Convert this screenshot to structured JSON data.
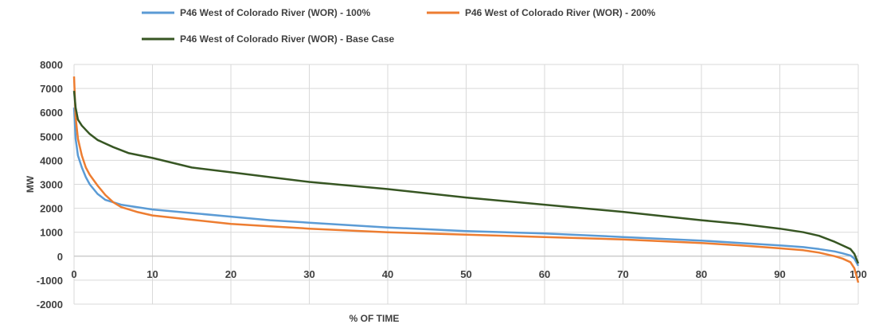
{
  "chart_data": {
    "type": "line",
    "title": "",
    "xlabel": "% OF TIME",
    "ylabel": "MW",
    "xlim": [
      0,
      100
    ],
    "ylim": [
      -2000,
      8000
    ],
    "xticks": [
      "0",
      "10",
      "20",
      "30",
      "40",
      "50",
      "60",
      "70",
      "80",
      "90",
      "100"
    ],
    "yticks": [
      "8000",
      "7000",
      "6000",
      "5000",
      "4000",
      "3000",
      "2000",
      "1000",
      "0",
      "-1000",
      "-2000"
    ],
    "grid": "vertical and horizontal",
    "legend_position": "top",
    "series": [
      {
        "name": "P46 West of Colorado River (WOR) - 100%",
        "color": "#5B9BD5",
        "x": [
          0,
          0.2,
          0.5,
          1,
          1.5,
          2,
          3,
          4,
          5,
          6,
          8,
          10,
          15,
          20,
          25,
          30,
          40,
          50,
          60,
          70,
          80,
          85,
          90,
          93,
          95,
          97,
          98,
          99,
          99.5,
          100
        ],
        "y": [
          6200,
          4900,
          4200,
          3700,
          3300,
          3000,
          2600,
          2350,
          2250,
          2150,
          2050,
          1950,
          1800,
          1650,
          1500,
          1400,
          1200,
          1050,
          950,
          800,
          650,
          550,
          450,
          380,
          300,
          200,
          120,
          30,
          -100,
          -400
        ]
      },
      {
        "name": "P46 West of Colorado River (WOR) - 200%",
        "color": "#ED7D31",
        "x": [
          0,
          0.2,
          0.5,
          1,
          1.5,
          2,
          3,
          4,
          5,
          6,
          8,
          10,
          15,
          20,
          25,
          30,
          40,
          50,
          60,
          70,
          80,
          85,
          90,
          93,
          95,
          97,
          98,
          99,
          99.5,
          100
        ],
        "y": [
          7500,
          5800,
          4900,
          4200,
          3700,
          3400,
          2950,
          2550,
          2250,
          2050,
          1850,
          1700,
          1520,
          1350,
          1250,
          1150,
          1000,
          900,
          800,
          700,
          550,
          450,
          330,
          250,
          150,
          0,
          -100,
          -250,
          -500,
          -1100
        ]
      },
      {
        "name": "P46 West of Colorado River (WOR) - Base Case",
        "color": "#375623",
        "x": [
          0,
          0.2,
          0.5,
          1,
          2,
          3,
          5,
          7,
          10,
          15,
          20,
          25,
          30,
          40,
          50,
          60,
          70,
          80,
          85,
          90,
          93,
          95,
          97,
          98,
          99,
          99.5,
          100
        ],
        "y": [
          6900,
          6200,
          5700,
          5450,
          5100,
          4850,
          4550,
          4300,
          4100,
          3700,
          3500,
          3300,
          3100,
          2800,
          2450,
          2150,
          1850,
          1500,
          1350,
          1150,
          1000,
          850,
          600,
          450,
          300,
          100,
          -300
        ]
      }
    ]
  }
}
